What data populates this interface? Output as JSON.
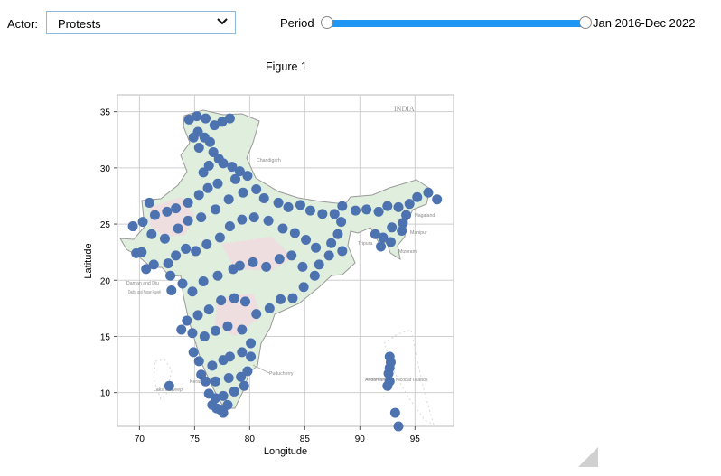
{
  "controls": {
    "actor_label": "Actor:",
    "actor_value": "Protests",
    "period_label": "Period",
    "period_readout": "Jan 2016-Dec 2022",
    "period_range_fraction": [
      0.0,
      1.0
    ]
  },
  "figure": {
    "title": "Figure 1",
    "map_label": "INDIA",
    "place_labels": [
      "Chandigarh",
      "Nagaland",
      "Manipur",
      "Tripura",
      "Mizoram",
      "Daman and Diu",
      "Dadra and Nagar Haveli",
      "Puducherry",
      "Andaman and Nicobar Islands",
      "Kerala",
      "Lakshadweep"
    ]
  },
  "chart_data": {
    "type": "scatter",
    "xlabel": "Longitude",
    "ylabel": "Latitude",
    "xlim": [
      68,
      98.5
    ],
    "ylim": [
      7,
      36.5
    ],
    "xticks": [
      70,
      75,
      80,
      85,
      90,
      95
    ],
    "yticks": [
      10,
      15,
      20,
      25,
      30,
      35
    ],
    "grid": true,
    "marker_color": "#4c72b0",
    "points": [
      [
        74.5,
        34.3
      ],
      [
        75.2,
        34.6
      ],
      [
        76.0,
        34.4
      ],
      [
        77.5,
        34.1
      ],
      [
        78.2,
        34.4
      ],
      [
        76.8,
        33.8
      ],
      [
        75.3,
        33.2
      ],
      [
        75.9,
        32.7
      ],
      [
        76.4,
        32.3
      ],
      [
        74.9,
        32.7
      ],
      [
        75.4,
        31.8
      ],
      [
        76.7,
        31.4
      ],
      [
        77.2,
        30.8
      ],
      [
        76.3,
        30.2
      ],
      [
        75.8,
        29.6
      ],
      [
        77.6,
        30.4
      ],
      [
        78.4,
        30.1
      ],
      [
        79.1,
        29.7
      ],
      [
        78.7,
        29.0
      ],
      [
        79.8,
        29.3
      ],
      [
        77.1,
        28.6
      ],
      [
        76.2,
        28.2
      ],
      [
        75.4,
        27.6
      ],
      [
        74.4,
        26.9
      ],
      [
        73.3,
        26.4
      ],
      [
        72.5,
        26.1
      ],
      [
        71.4,
        25.8
      ],
      [
        70.9,
        26.9
      ],
      [
        70.3,
        25.2
      ],
      [
        69.4,
        24.8
      ],
      [
        71.1,
        24.1
      ],
      [
        72.3,
        23.7
      ],
      [
        73.5,
        24.6
      ],
      [
        74.4,
        25.3
      ],
      [
        75.6,
        25.6
      ],
      [
        76.9,
        26.3
      ],
      [
        78.1,
        27.2
      ],
      [
        79.4,
        27.8
      ],
      [
        80.6,
        28.1
      ],
      [
        81.3,
        27.3
      ],
      [
        82.6,
        26.9
      ],
      [
        83.5,
        26.5
      ],
      [
        84.6,
        26.7
      ],
      [
        85.5,
        26.2
      ],
      [
        86.6,
        25.9
      ],
      [
        87.7,
        25.9
      ],
      [
        88.4,
        26.6
      ],
      [
        88.3,
        25.2
      ],
      [
        88.0,
        24.1
      ],
      [
        87.4,
        23.3
      ],
      [
        88.4,
        22.6
      ],
      [
        87.2,
        22.2
      ],
      [
        86.0,
        22.9
      ],
      [
        85.1,
        23.6
      ],
      [
        84.1,
        24.2
      ],
      [
        83.0,
        24.6
      ],
      [
        81.7,
        25.3
      ],
      [
        80.4,
        25.6
      ],
      [
        79.3,
        25.4
      ],
      [
        78.2,
        24.8
      ],
      [
        77.3,
        23.8
      ],
      [
        76.1,
        23.2
      ],
      [
        75.1,
        22.6
      ],
      [
        74.2,
        22.8
      ],
      [
        73.3,
        22.2
      ],
      [
        72.6,
        21.5
      ],
      [
        71.3,
        21.4
      ],
      [
        70.2,
        22.5
      ],
      [
        69.7,
        22.4
      ],
      [
        70.6,
        21.0
      ],
      [
        72.8,
        20.4
      ],
      [
        73.9,
        19.7
      ],
      [
        72.9,
        19.1
      ],
      [
        74.8,
        19.0
      ],
      [
        75.8,
        19.9
      ],
      [
        77.1,
        20.4
      ],
      [
        78.5,
        21.0
      ],
      [
        79.1,
        21.3
      ],
      [
        80.3,
        21.6
      ],
      [
        81.5,
        21.2
      ],
      [
        82.7,
        21.9
      ],
      [
        83.8,
        22.2
      ],
      [
        84.8,
        21.2
      ],
      [
        85.9,
        20.4
      ],
      [
        86.3,
        21.4
      ],
      [
        84.9,
        19.4
      ],
      [
        83.9,
        18.4
      ],
      [
        82.8,
        18.3
      ],
      [
        81.8,
        17.5
      ],
      [
        80.6,
        17.0
      ],
      [
        79.6,
        18.1
      ],
      [
        78.6,
        18.4
      ],
      [
        77.4,
        18.2
      ],
      [
        76.3,
        17.4
      ],
      [
        75.3,
        16.9
      ],
      [
        74.3,
        16.4
      ],
      [
        73.8,
        15.6
      ],
      [
        74.8,
        15.3
      ],
      [
        75.9,
        15.0
      ],
      [
        76.9,
        15.5
      ],
      [
        78.0,
        15.9
      ],
      [
        79.3,
        15.6
      ],
      [
        80.1,
        14.4
      ],
      [
        80.1,
        13.2
      ],
      [
        79.3,
        13.6
      ],
      [
        78.2,
        13.2
      ],
      [
        77.6,
        12.9
      ],
      [
        76.6,
        12.4
      ],
      [
        75.4,
        12.8
      ],
      [
        74.9,
        13.6
      ],
      [
        75.6,
        11.6
      ],
      [
        76.0,
        11.0
      ],
      [
        76.9,
        11.0
      ],
      [
        78.1,
        11.3
      ],
      [
        79.2,
        11.4
      ],
      [
        79.8,
        11.9
      ],
      [
        79.5,
        10.6
      ],
      [
        78.6,
        10.1
      ],
      [
        77.6,
        9.7
      ],
      [
        76.9,
        9.5
      ],
      [
        76.3,
        9.9
      ],
      [
        76.6,
        8.9
      ],
      [
        77.3,
        8.5
      ],
      [
        77.6,
        8.2
      ],
      [
        78.0,
        8.9
      ],
      [
        77.0,
        8.6
      ],
      [
        72.7,
        10.6
      ],
      [
        89.6,
        26.2
      ],
      [
        90.6,
        26.3
      ],
      [
        91.7,
        26.1
      ],
      [
        92.5,
        26.6
      ],
      [
        93.5,
        26.5
      ],
      [
        94.5,
        26.8
      ],
      [
        95.2,
        27.4
      ],
      [
        96.2,
        27.8
      ],
      [
        97.0,
        27.2
      ],
      [
        94.2,
        25.8
      ],
      [
        93.9,
        25.1
      ],
      [
        93.8,
        24.4
      ],
      [
        92.9,
        24.7
      ],
      [
        92.1,
        23.8
      ],
      [
        91.4,
        24.1
      ],
      [
        92.8,
        23.4
      ],
      [
        91.9,
        23.0
      ],
      [
        92.7,
        13.2
      ],
      [
        92.8,
        12.7
      ],
      [
        92.7,
        12.2
      ],
      [
        92.6,
        11.7
      ],
      [
        92.7,
        11.0
      ],
      [
        92.5,
        10.6
      ],
      [
        93.2,
        8.2
      ],
      [
        93.5,
        7.0
      ]
    ]
  }
}
